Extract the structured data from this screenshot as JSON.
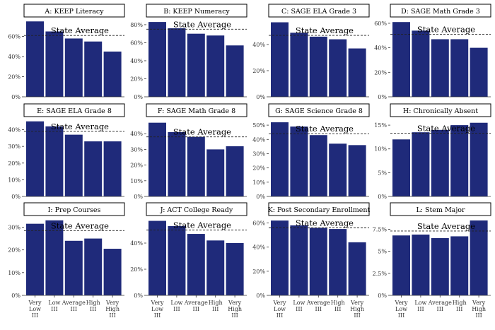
{
  "chart_data": {
    "type": "bar",
    "layout": {
      "rows": 3,
      "cols": 4
    },
    "bar_color": "#1f2a7a",
    "state_average_label": "State Average",
    "categories": [
      "Very Low III",
      "Low III",
      "Average III",
      "High III",
      "Very High III"
    ],
    "category_lines": [
      [
        "Very",
        "Low",
        "III"
      ],
      [
        "Low",
        "III"
      ],
      [
        "Average",
        "III"
      ],
      [
        "High",
        "III"
      ],
      [
        "Very",
        "High",
        "III"
      ]
    ],
    "panels": [
      {
        "title": "A: KEEP Literacy",
        "values": [
          75,
          65,
          58,
          55,
          45
        ],
        "state_avg": 61,
        "ylim": [
          0,
          78
        ],
        "ticks": [
          0,
          20,
          40,
          60
        ],
        "tick_labels": [
          "0%",
          "20%",
          "40%",
          "60%"
        ]
      },
      {
        "title": "B: KEEP Numeracy",
        "values": [
          83,
          76,
          70,
          68,
          57
        ],
        "state_avg": 75,
        "ylim": [
          0,
          87
        ],
        "ticks": [
          0,
          20,
          40,
          60,
          80
        ],
        "tick_labels": [
          "0%",
          "20%",
          "40%",
          "60%",
          "80%"
        ]
      },
      {
        "title": "C: SAGE ELA Grade 3",
        "values": [
          57,
          49,
          46,
          44,
          37
        ],
        "state_avg": 47,
        "ylim": [
          0,
          60
        ],
        "ticks": [
          0,
          20,
          40
        ],
        "tick_labels": [
          "0%",
          "20%",
          "40%"
        ]
      },
      {
        "title": "D: SAGE Math Grade 3",
        "values": [
          61,
          54,
          47,
          47,
          40
        ],
        "state_avg": 51,
        "ylim": [
          0,
          64
        ],
        "ticks": [
          0,
          20,
          40,
          60
        ],
        "tick_labels": [
          "0%",
          "20%",
          "40%",
          "60%"
        ]
      },
      {
        "title": "E: SAGE ELA Grade 8",
        "values": [
          45,
          42,
          37,
          33,
          33
        ],
        "state_avg": 39,
        "ylim": [
          0,
          47
        ],
        "ticks": [
          0,
          10,
          20,
          30,
          40
        ],
        "tick_labels": [
          "0%",
          "10%",
          "20%",
          "30%",
          "40%"
        ]
      },
      {
        "title": "F: SAGE Math Grade 8",
        "values": [
          47,
          41,
          38,
          30,
          32
        ],
        "state_avg": 38,
        "ylim": [
          0,
          50
        ],
        "ticks": [
          0,
          10,
          20,
          30,
          40
        ],
        "tick_labels": [
          "0%",
          "10%",
          "20%",
          "30%",
          "40%"
        ]
      },
      {
        "title": "G: SAGE Science Grade 8",
        "values": [
          52,
          49,
          43,
          37,
          36
        ],
        "state_avg": 44,
        "ylim": [
          0,
          55
        ],
        "ticks": [
          0,
          10,
          20,
          30,
          40,
          50
        ],
        "tick_labels": [
          "0%",
          "10%",
          "20%",
          "30%",
          "40%",
          "50%"
        ]
      },
      {
        "title": "H: Chronically Absent",
        "values": [
          12,
          13.5,
          14,
          15,
          15.5
        ],
        "state_avg": 13.3,
        "ylim": [
          0,
          16.5
        ],
        "ticks": [
          0,
          5,
          10,
          15
        ],
        "tick_labels": [
          "0%",
          "5%",
          "10%",
          "15%"
        ]
      },
      {
        "title": "I: Prep Courses",
        "values": [
          31.5,
          33,
          24,
          25,
          20.5
        ],
        "state_avg": 28.5,
        "ylim": [
          0,
          34.5
        ],
        "ticks": [
          0,
          10,
          20,
          30
        ],
        "tick_labels": [
          "0%",
          "10%",
          "20%",
          "30%"
        ]
      },
      {
        "title": "J: ACT College Ready",
        "values": [
          57,
          53,
          47,
          42,
          40
        ],
        "state_avg": 50,
        "ylim": [
          0,
          60
        ],
        "ticks": [
          0,
          20,
          40
        ],
        "tick_labels": [
          "0%",
          "20%",
          "40%"
        ]
      },
      {
        "title": "K: Post Secondary Enrollment",
        "values": [
          62,
          58,
          56,
          55,
          44
        ],
        "state_avg": 56,
        "ylim": [
          0,
          65
        ],
        "ticks": [
          0,
          20,
          40,
          60
        ],
        "tick_labels": [
          "0%",
          "20%",
          "40%",
          "60%"
        ]
      },
      {
        "title": "L: Stem Major",
        "values": [
          6.8,
          6.9,
          6.5,
          6.7,
          8.5
        ],
        "state_avg": 7.3,
        "ylim": [
          0,
          8.9
        ],
        "ticks": [
          0,
          2.5,
          5,
          7.5
        ],
        "tick_labels": [
          "0%",
          "2.5%",
          "5%",
          "7.5%"
        ]
      }
    ]
  }
}
